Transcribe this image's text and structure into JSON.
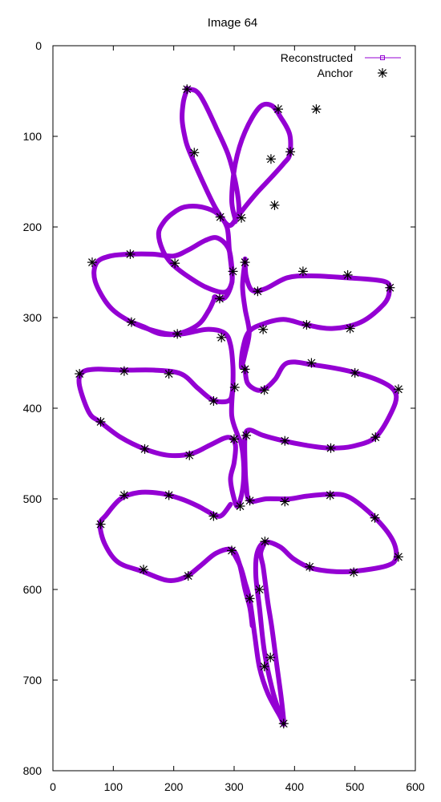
{
  "chart_data": {
    "type": "line",
    "title": "Image 64",
    "xlabel": "",
    "ylabel": "",
    "xlim": [
      0,
      600
    ],
    "ylim": [
      800,
      0
    ],
    "y_inverted": true,
    "grid": false,
    "legend_position": "top-right",
    "x_ticks": [
      "0",
      "100",
      "200",
      "300",
      "400",
      "500",
      "600"
    ],
    "y_ticks": [
      "0",
      "100",
      "200",
      "300",
      "400",
      "500",
      "600",
      "700",
      "800"
    ],
    "series": [
      {
        "name": "Reconstructed",
        "color": "#9400d3",
        "marker": "small-open-square",
        "closed": true,
        "points": [
          [
            222,
            48
          ],
          [
            216,
            62
          ],
          [
            214,
            82
          ],
          [
            220,
            105
          ],
          [
            228,
            120
          ],
          [
            248,
            150
          ],
          [
            270,
            180
          ],
          [
            290,
            198
          ],
          [
            302,
            192
          ],
          [
            308,
            180
          ],
          [
            302,
            150
          ],
          [
            290,
            120
          ],
          [
            270,
            90
          ],
          [
            250,
            62
          ],
          [
            237,
            50
          ],
          [
            222,
            48
          ]
        ]
      },
      {
        "name": "Reconstructed",
        "color": "#9400d3",
        "marker": "small-open-square",
        "closed": true,
        "points": [
          [
            302,
            192
          ],
          [
            318,
            178
          ],
          [
            338,
            162
          ],
          [
            362,
            145
          ],
          [
            382,
            130
          ],
          [
            392,
            120
          ],
          [
            392,
            98
          ],
          [
            378,
            80
          ],
          [
            362,
            66
          ],
          [
            342,
            68
          ],
          [
            318,
            95
          ],
          [
            302,
            130
          ],
          [
            296,
            170
          ],
          [
            302,
            192
          ]
        ]
      },
      {
        "name": "Reconstructed",
        "color": "#9400d3",
        "marker": "small-open-square",
        "closed": true,
        "points": [
          [
            296,
            248
          ],
          [
            292,
            225
          ],
          [
            288,
            200
          ],
          [
            272,
            185
          ],
          [
            246,
            178
          ],
          [
            218,
            178
          ],
          [
            198,
            185
          ],
          [
            182,
            196
          ],
          [
            175,
            208
          ],
          [
            182,
            226
          ],
          [
            196,
            240
          ],
          [
            218,
            252
          ],
          [
            252,
            266
          ],
          [
            284,
            272
          ],
          [
            296,
            262
          ],
          [
            296,
            248
          ]
        ]
      },
      {
        "name": "Reconstructed",
        "color": "#9400d3",
        "marker": "small-open-square",
        "closed": true,
        "points": [
          [
            268,
            278
          ],
          [
            285,
            278
          ],
          [
            296,
            262
          ],
          [
            296,
            243
          ],
          [
            290,
            223
          ],
          [
            272,
            212
          ],
          [
            252,
            215
          ],
          [
            225,
            225
          ],
          [
            200,
            232
          ],
          [
            165,
            230
          ],
          [
            128,
            230
          ],
          [
            95,
            232
          ],
          [
            72,
            240
          ],
          [
            70,
            260
          ],
          [
            94,
            288
          ],
          [
            130,
            305
          ],
          [
            170,
            315
          ],
          [
            205,
            318
          ],
          [
            240,
            308
          ],
          [
            258,
            292
          ],
          [
            268,
            278
          ]
        ]
      },
      {
        "name": "Reconstructed",
        "color": "#9400d3",
        "marker": "small-open-square",
        "closed": true,
        "points": [
          [
            318,
            238
          ],
          [
            320,
            255
          ],
          [
            330,
            270
          ],
          [
            352,
            268
          ],
          [
            388,
            256
          ],
          [
            428,
            254
          ],
          [
            485,
            256
          ],
          [
            548,
            260
          ],
          [
            557,
            270
          ],
          [
            548,
            285
          ],
          [
            510,
            305
          ],
          [
            462,
            312
          ],
          [
            420,
            308
          ],
          [
            382,
            302
          ],
          [
            348,
            307
          ],
          [
            324,
            316
          ],
          [
            314,
            336
          ],
          [
            312,
            355
          ],
          [
            318,
            340
          ],
          [
            325,
            316
          ],
          [
            318,
            290
          ],
          [
            314,
            265
          ],
          [
            318,
            238
          ]
        ]
      },
      {
        "name": "Reconstructed",
        "color": "#9400d3",
        "marker": "small-open-square",
        "closed": true,
        "points": [
          [
            298,
            376
          ],
          [
            298,
            354
          ],
          [
            294,
            330
          ],
          [
            284,
            317
          ],
          [
            255,
            313
          ],
          [
            215,
            318
          ],
          [
            178,
            318
          ],
          [
            150,
            310
          ],
          [
            130,
            305
          ]
        ]
      },
      {
        "name": "Reconstructed",
        "color": "#9400d3",
        "marker": "small-open-square",
        "closed": true,
        "points": [
          [
            298,
            376
          ],
          [
            294,
            390
          ],
          [
            280,
            393
          ],
          [
            262,
            390
          ],
          [
            240,
            378
          ],
          [
            212,
            362
          ],
          [
            168,
            358
          ],
          [
            118,
            358
          ],
          [
            70,
            357
          ],
          [
            48,
            361
          ],
          [
            44,
            375
          ],
          [
            60,
            405
          ],
          [
            78,
            415
          ],
          [
            112,
            432
          ],
          [
            152,
            445
          ],
          [
            192,
            452
          ],
          [
            230,
            450
          ],
          [
            262,
            440
          ],
          [
            290,
            432
          ],
          [
            302,
            440
          ],
          [
            300,
            460
          ],
          [
            294,
            478
          ],
          [
            300,
            500
          ],
          [
            306,
            508
          ],
          [
            314,
            490
          ],
          [
            316,
            465
          ],
          [
            312,
            440
          ],
          [
            306,
            430
          ],
          [
            296,
            408
          ],
          [
            298,
            376
          ]
        ]
      },
      {
        "name": "Reconstructed",
        "color": "#9400d3",
        "marker": "small-open-square",
        "closed": true,
        "points": [
          [
            318,
            356
          ],
          [
            322,
            372
          ],
          [
            338,
            380
          ],
          [
            352,
            378
          ],
          [
            368,
            368
          ],
          [
            388,
            350
          ],
          [
            430,
            352
          ],
          [
            496,
            360
          ],
          [
            548,
            372
          ],
          [
            568,
            385
          ],
          [
            560,
            405
          ],
          [
            534,
            432
          ],
          [
            496,
            442
          ],
          [
            458,
            444
          ],
          [
            420,
            441
          ],
          [
            382,
            436
          ],
          [
            348,
            430
          ],
          [
            325,
            424
          ],
          [
            318,
            432
          ],
          [
            318,
            460
          ],
          [
            320,
            485
          ],
          [
            326,
            502
          ],
          [
            354,
            500
          ],
          [
            392,
            500
          ],
          [
            420,
            497
          ],
          [
            458,
            495
          ],
          [
            490,
            498
          ],
          [
            532,
            520
          ],
          [
            562,
            545
          ],
          [
            568,
            565
          ],
          [
            552,
            574
          ],
          [
            498,
            580
          ],
          [
            460,
            580
          ],
          [
            426,
            576
          ],
          [
            398,
            566
          ],
          [
            376,
            553
          ],
          [
            351,
            548
          ],
          [
            338,
            560
          ],
          [
            336,
            585
          ],
          [
            342,
            620
          ],
          [
            350,
            668
          ],
          [
            363,
            710
          ],
          [
            376,
            738
          ],
          [
            381,
            748
          ],
          [
            382,
            745
          ],
          [
            378,
            720
          ],
          [
            370,
            680
          ],
          [
            362,
            640
          ],
          [
            356,
            615
          ],
          [
            352,
            595
          ],
          [
            348,
            575
          ],
          [
            344,
            560
          ],
          [
            351,
            548
          ]
        ]
      },
      {
        "name": "Reconstructed",
        "color": "#9400d3",
        "marker": "small-open-square",
        "closed": true,
        "points": [
          [
            296,
            556
          ],
          [
            310,
            574
          ],
          [
            318,
            592
          ],
          [
            326,
            612
          ],
          [
            334,
            650
          ],
          [
            342,
            686
          ],
          [
            356,
            715
          ],
          [
            376,
            740
          ],
          [
            382,
            748
          ]
        ]
      },
      {
        "name": "Reconstructed",
        "color": "#9400d3",
        "marker": "small-open-square",
        "closed": true,
        "points": [
          [
            294,
            506
          ],
          [
            280,
            518
          ],
          [
            268,
            518
          ],
          [
            240,
            508
          ],
          [
            212,
            500
          ],
          [
            178,
            494
          ],
          [
            142,
            493
          ],
          [
            112,
            500
          ],
          [
            88,
            518
          ],
          [
            78,
            528
          ],
          [
            86,
            550
          ],
          [
            108,
            570
          ],
          [
            148,
            580
          ],
          [
            190,
            590
          ],
          [
            220,
            586
          ],
          [
            244,
            574
          ],
          [
            270,
            560
          ],
          [
            296,
            556
          ],
          [
            308,
            570
          ],
          [
            318,
            600
          ],
          [
            326,
            620
          ],
          [
            330,
            640
          ]
        ]
      }
    ],
    "anchors": {
      "name": "Anchor",
      "color": "#000000",
      "marker": "star",
      "points": [
        [
          222,
          48
        ],
        [
          234,
          118
        ],
        [
          277,
          189
        ],
        [
          312,
          190
        ],
        [
          361,
          125
        ],
        [
          393,
          117
        ],
        [
          367,
          176
        ],
        [
          373,
          70
        ],
        [
          436,
          70
        ],
        [
          65,
          239
        ],
        [
          128,
          230
        ],
        [
          202,
          240
        ],
        [
          276,
          279
        ],
        [
          298,
          249
        ],
        [
          318,
          239
        ],
        [
          339,
          271
        ],
        [
          414,
          249
        ],
        [
          488,
          253
        ],
        [
          558,
          267
        ],
        [
          130,
          305
        ],
        [
          206,
          318
        ],
        [
          279,
          322
        ],
        [
          348,
          313
        ],
        [
          420,
          308
        ],
        [
          492,
          312
        ],
        [
          44,
          362
        ],
        [
          118,
          359
        ],
        [
          192,
          362
        ],
        [
          266,
          392
        ],
        [
          301,
          377
        ],
        [
          318,
          357
        ],
        [
          350,
          380
        ],
        [
          428,
          350
        ],
        [
          500,
          361
        ],
        [
          572,
          379
        ],
        [
          79,
          415
        ],
        [
          152,
          445
        ],
        [
          226,
          452
        ],
        [
          300,
          434
        ],
        [
          320,
          430
        ],
        [
          384,
          436
        ],
        [
          460,
          444
        ],
        [
          534,
          432
        ],
        [
          118,
          496
        ],
        [
          192,
          496
        ],
        [
          266,
          519
        ],
        [
          310,
          508
        ],
        [
          326,
          502
        ],
        [
          384,
          503
        ],
        [
          459,
          496
        ],
        [
          533,
          521
        ],
        [
          572,
          564
        ],
        [
          79,
          528
        ],
        [
          150,
          578
        ],
        [
          224,
          585
        ],
        [
          296,
          557
        ],
        [
          351,
          547
        ],
        [
          425,
          575
        ],
        [
          498,
          581
        ],
        [
          326,
          610
        ],
        [
          342,
          600
        ],
        [
          350,
          685
        ],
        [
          360,
          675
        ],
        [
          382,
          748
        ]
      ]
    }
  }
}
